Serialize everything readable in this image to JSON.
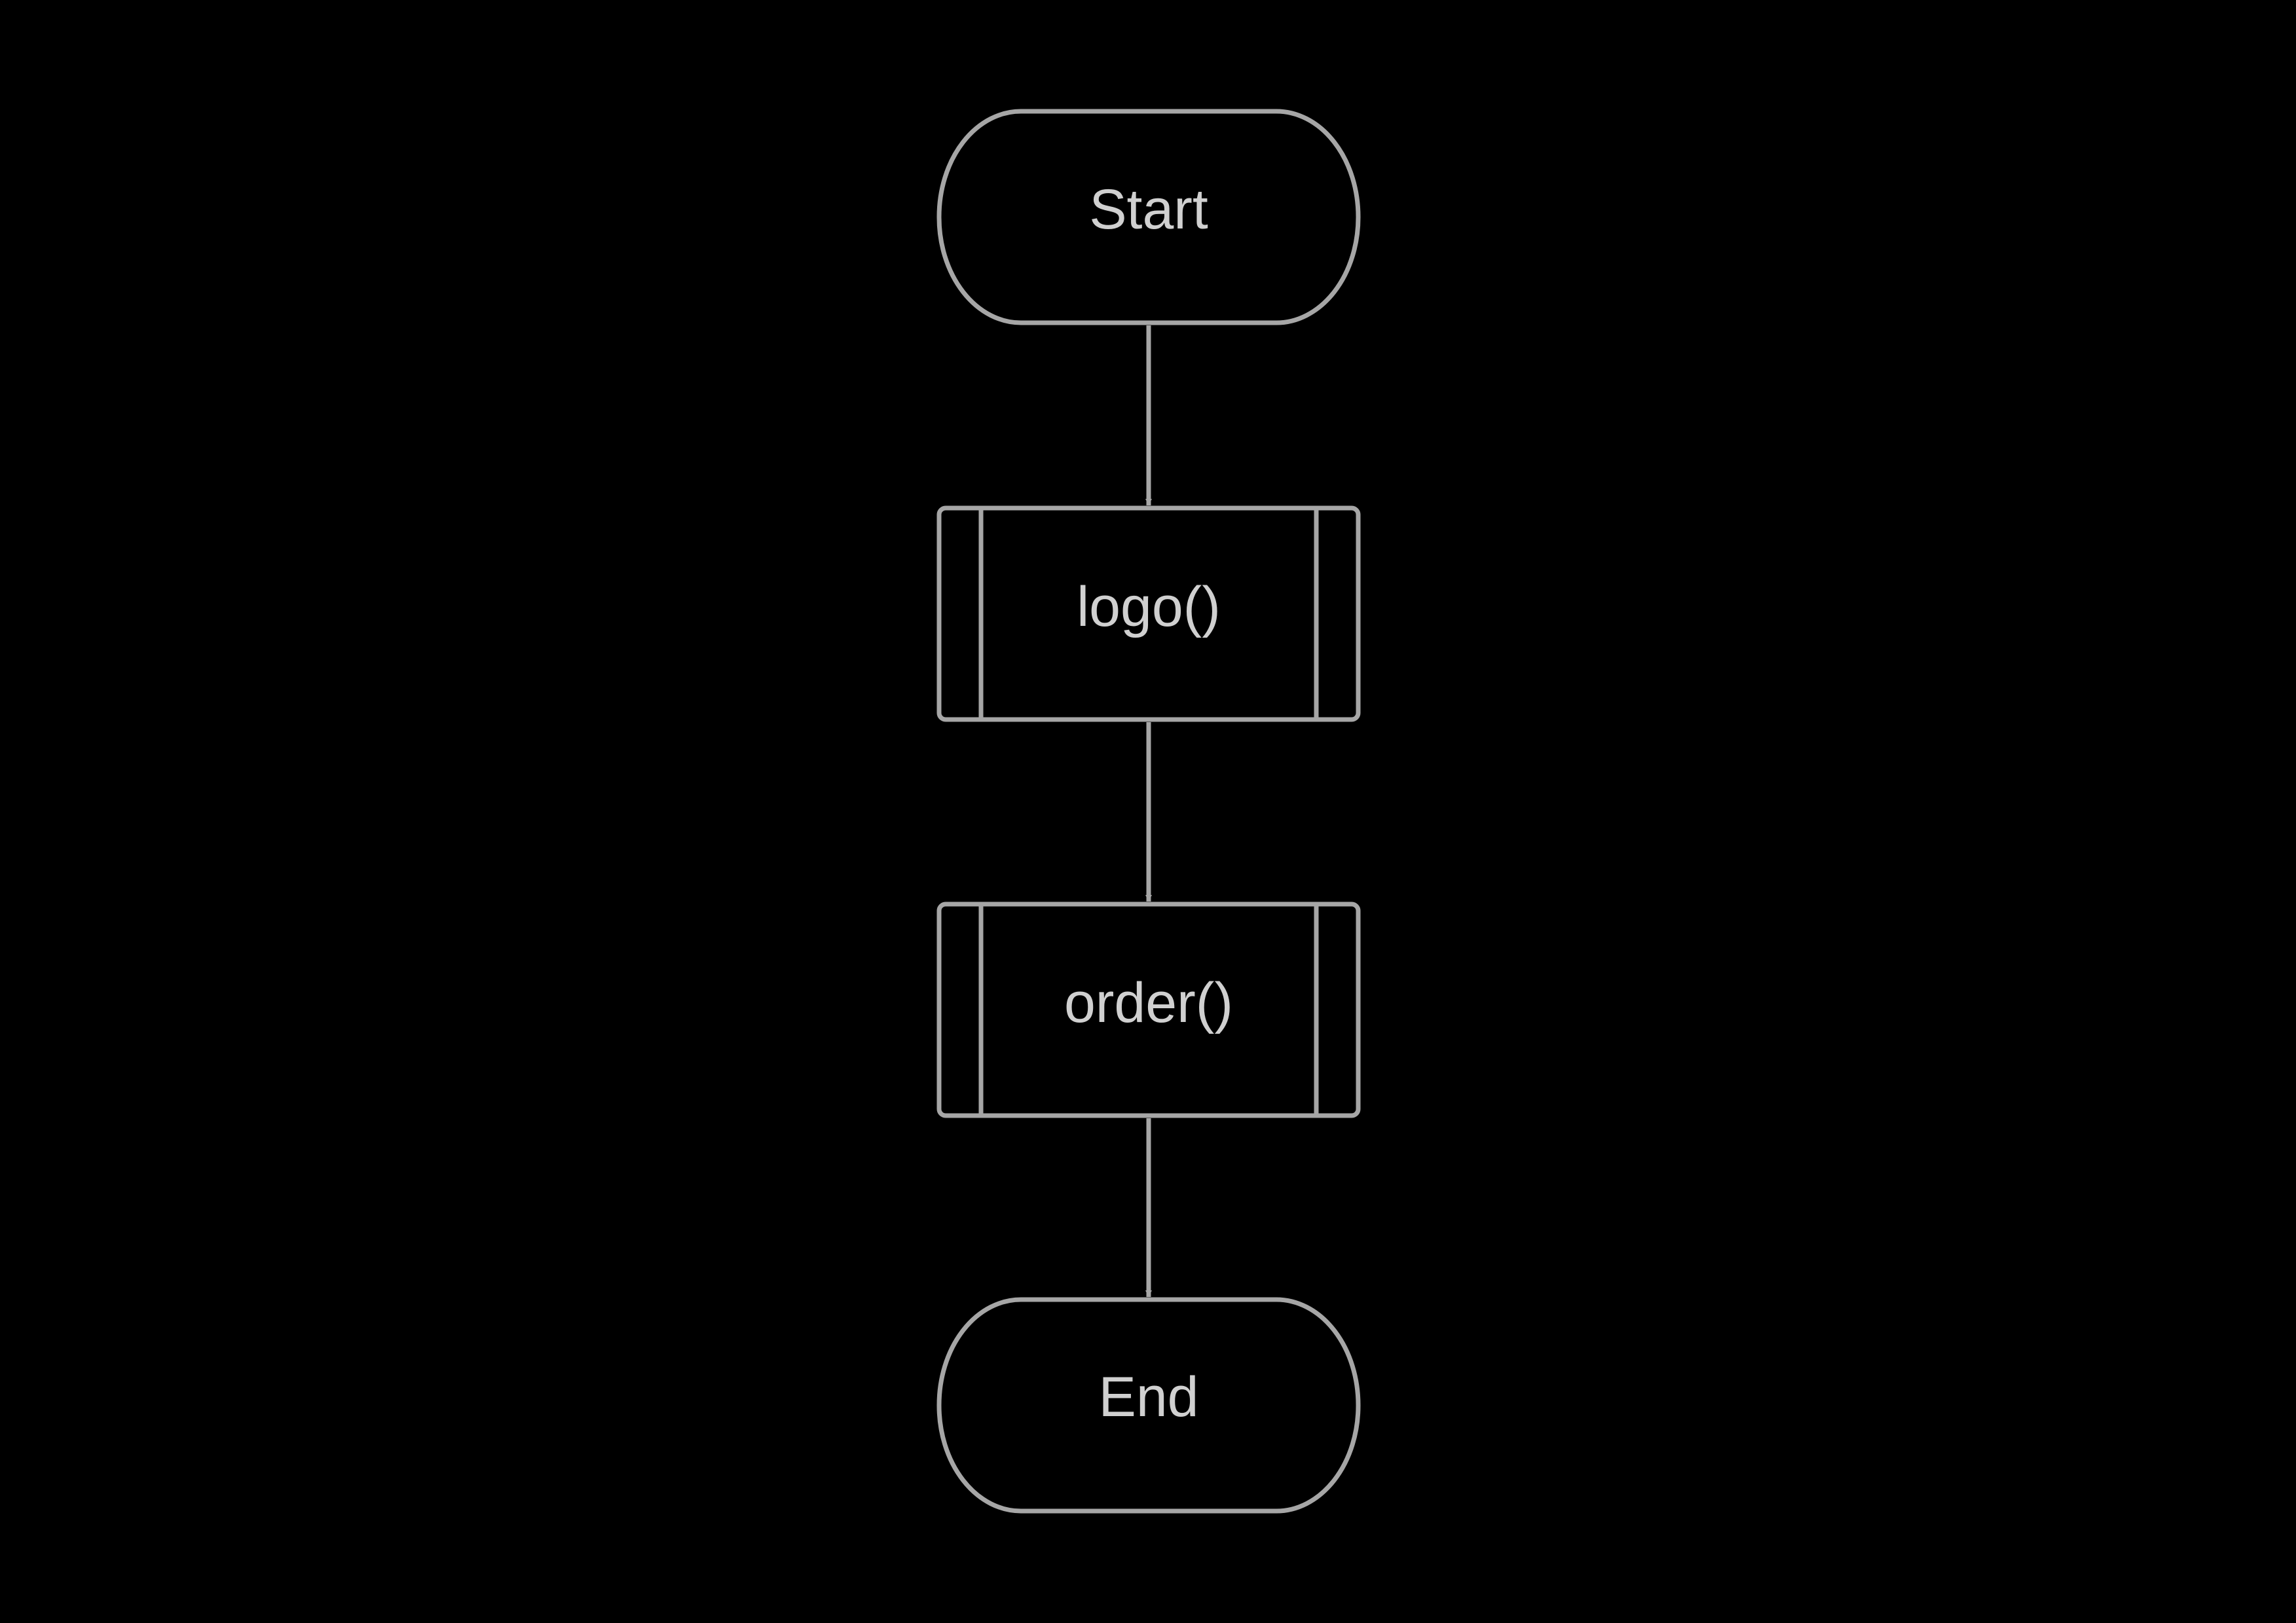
{
  "colors": {
    "background": "#000000",
    "stroke": "#a6a6a6",
    "text": "#d0d0d0"
  },
  "nodes": [
    {
      "id": "start",
      "type": "terminator",
      "label": "Start"
    },
    {
      "id": "logo",
      "type": "predefined-process",
      "label": "logo()"
    },
    {
      "id": "order",
      "type": "predefined-process",
      "label": "order()"
    },
    {
      "id": "end",
      "type": "terminator",
      "label": "End"
    }
  ],
  "edges": [
    {
      "from": "start",
      "to": "logo"
    },
    {
      "from": "logo",
      "to": "order"
    },
    {
      "from": "order",
      "to": "end"
    }
  ]
}
